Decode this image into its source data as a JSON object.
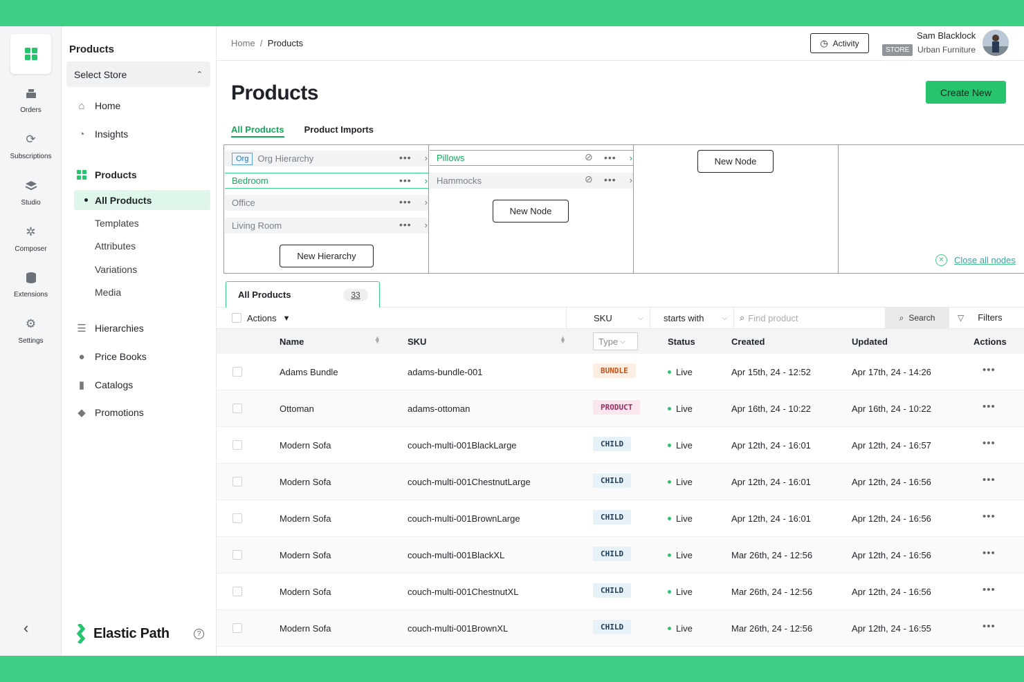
{
  "rail": {
    "items": [
      {
        "label": "Orders",
        "icon": "register-icon"
      },
      {
        "label": "Subscriptions",
        "icon": "refresh-icon"
      },
      {
        "label": "Studio",
        "icon": "layers-icon"
      },
      {
        "label": "Composer",
        "icon": "magic-wand-icon"
      },
      {
        "label": "Extensions",
        "icon": "database-icon"
      },
      {
        "label": "Settings",
        "icon": "gear-icon"
      }
    ]
  },
  "nav": {
    "title": "Products",
    "store_select": "Select Store",
    "home": "Home",
    "insights": "Insights",
    "products": "Products",
    "sub": [
      "All Products",
      "Templates",
      "Attributes",
      "Variations",
      "Media"
    ],
    "hierarchies": "Hierarchies",
    "price_books": "Price Books",
    "catalogs": "Catalogs",
    "promotions": "Promotions",
    "brand": "Elastic Path"
  },
  "topbar": {
    "crumb_home": "Home",
    "crumb_sep": "/",
    "crumb_current": "Products",
    "activity": "Activity",
    "user_name": "Sam Blacklock",
    "store_badge": "STORE",
    "store_name": "Urban Furniture"
  },
  "page": {
    "title": "Products",
    "create_new": "Create New",
    "tabs": [
      "All Products",
      "Product Imports"
    ]
  },
  "hierarchy": {
    "org_tag": "Org",
    "col1": [
      "Org Hierarchy",
      "Bedroom",
      "Office",
      "Living Room"
    ],
    "new_hierarchy": "New Hierarchy",
    "col2": [
      "Pillows",
      "Hammocks"
    ],
    "new_node": "New Node",
    "close_all": "Close all nodes"
  },
  "table": {
    "tab_label": "All Products",
    "count": "33",
    "actions": "Actions",
    "field": "SKU",
    "operator": "starts with",
    "search_placeholder": "Find product",
    "search_btn": "Search",
    "filters": "Filters",
    "headers": {
      "name": "Name",
      "sku": "SKU",
      "type": "Type",
      "status": "Status",
      "created": "Created",
      "updated": "Updated",
      "actions": "Actions"
    },
    "rows": [
      {
        "name": "Adams Bundle",
        "sku": "adams-bundle-001",
        "type": "BUNDLE",
        "status": "Live",
        "created": "Apr 15th, 24 - 12:52",
        "updated": "Apr 17th, 24 - 14:26"
      },
      {
        "name": "Ottoman",
        "sku": "adams-ottoman",
        "type": "PRODUCT",
        "status": "Live",
        "created": "Apr 16th, 24 - 10:22",
        "updated": "Apr 16th, 24 - 10:22"
      },
      {
        "name": "Modern Sofa",
        "sku": "couch-multi-001BlackLarge",
        "type": "CHILD",
        "status": "Live",
        "created": "Apr 12th, 24 - 16:01",
        "updated": "Apr 12th, 24 - 16:57"
      },
      {
        "name": "Modern Sofa",
        "sku": "couch-multi-001ChestnutLarge",
        "type": "CHILD",
        "status": "Live",
        "created": "Apr 12th, 24 - 16:01",
        "updated": "Apr 12th, 24 - 16:56"
      },
      {
        "name": "Modern Sofa",
        "sku": "couch-multi-001BrownLarge",
        "type": "CHILD",
        "status": "Live",
        "created": "Apr 12th, 24 - 16:01",
        "updated": "Apr 12th, 24 - 16:56"
      },
      {
        "name": "Modern Sofa",
        "sku": "couch-multi-001BlackXL",
        "type": "CHILD",
        "status": "Live",
        "created": "Mar 26th, 24 - 12:56",
        "updated": "Apr 12th, 24 - 16:56"
      },
      {
        "name": "Modern Sofa",
        "sku": "couch-multi-001ChestnutXL",
        "type": "CHILD",
        "status": "Live",
        "created": "Mar 26th, 24 - 12:56",
        "updated": "Apr 12th, 24 - 16:56"
      },
      {
        "name": "Modern Sofa",
        "sku": "couch-multi-001BrownXL",
        "type": "CHILD",
        "status": "Live",
        "created": "Mar 26th, 24 - 12:56",
        "updated": "Apr 12th, 24 - 16:55"
      }
    ]
  },
  "colors": {
    "accent": "#26c46e",
    "frame": "#3ecf86"
  }
}
